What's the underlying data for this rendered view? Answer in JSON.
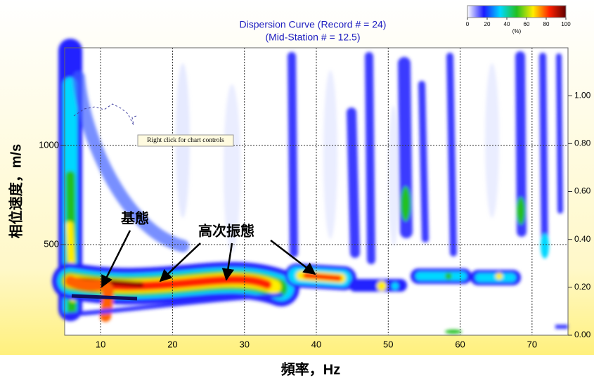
{
  "chart_data": {
    "type": "dispersion-image",
    "title": "Dispersion Curve (Record # = 24)",
    "subtitle": "(Mid-Station # = 12.5)",
    "x_label": "頻率，Hz",
    "y_label": "相位速度，m/s",
    "xlim": [
      5,
      75
    ],
    "xticks": [
      10,
      20,
      30,
      40,
      50,
      60,
      70
    ],
    "ylim": [
      43,
      1493
    ],
    "yticks": [
      500,
      1000
    ],
    "y2lim": [
      0,
      1.2
    ],
    "y2ticks": [
      {
        "value": 0,
        "label": "0.00"
      },
      {
        "value": 0.2,
        "label": "0.20"
      },
      {
        "value": 0.4,
        "label": "0.40"
      },
      {
        "value": 0.6,
        "label": "0.60"
      },
      {
        "value": 0.8,
        "label": "0.80"
      },
      {
        "value": 1,
        "label": "1.00"
      }
    ],
    "grid": true,
    "colorbar": {
      "ticks": [
        0,
        20,
        40,
        60,
        80,
        100
      ],
      "unit": "(%)",
      "colors": [
        "#ffffff",
        "#1a1aff",
        "#00d8ff",
        "#22c020",
        "#ffee00",
        "#ff2000",
        "#600000"
      ]
    },
    "annotations": [
      "基態",
      "高次振態"
    ],
    "tooltip": "Right click for chart controls"
  }
}
